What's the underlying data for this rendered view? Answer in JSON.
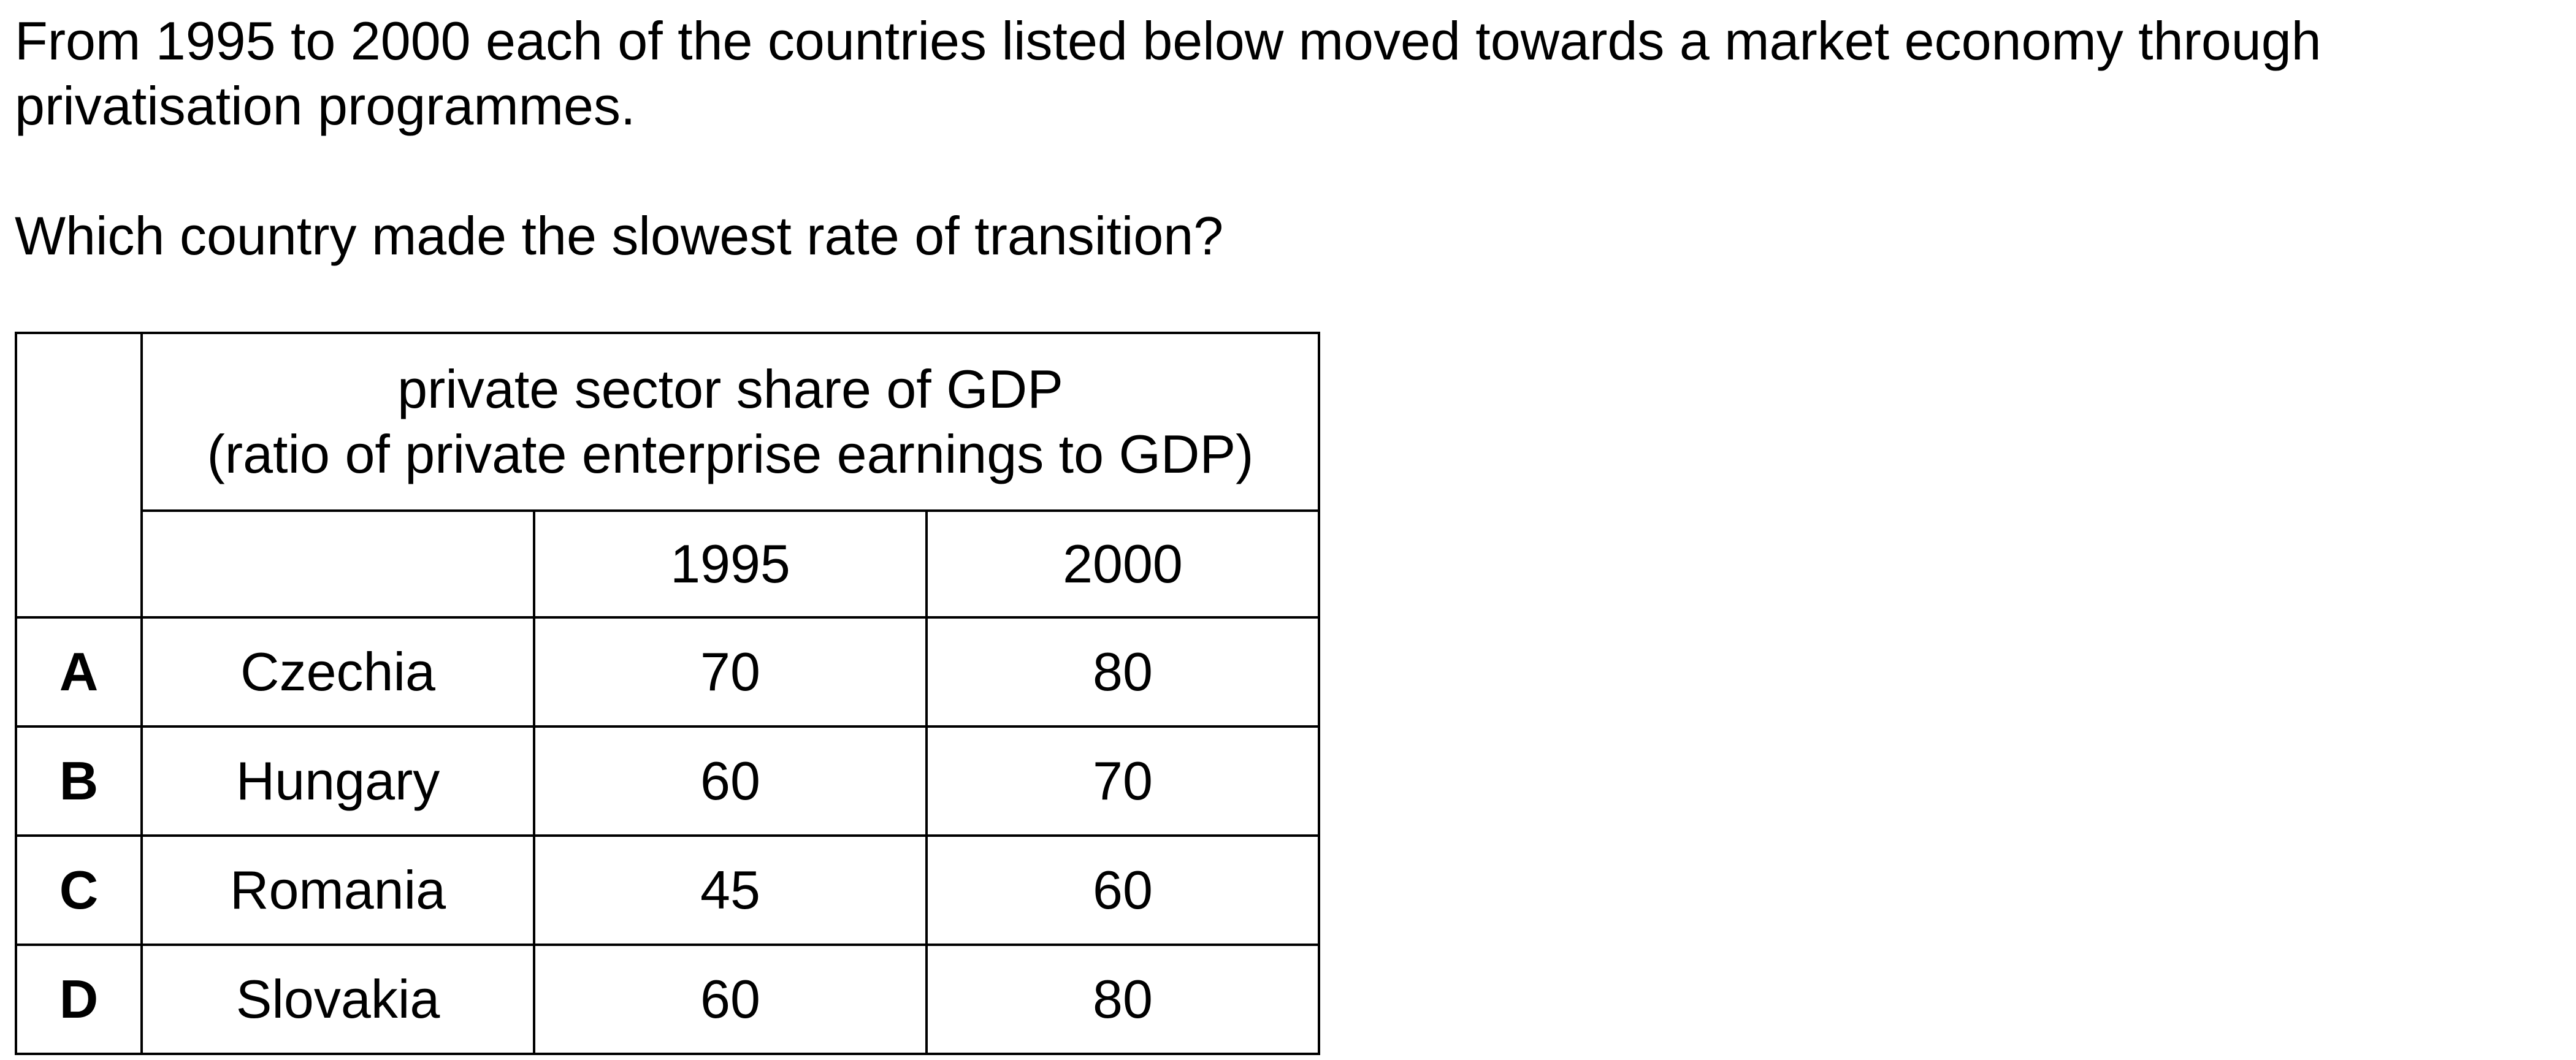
{
  "question": {
    "intro": "From 1995 to 2000 each of the countries listed below moved towards a market economy through\nprivatisation programmes.",
    "prompt": "Which country made the slowest rate of transition?"
  },
  "table": {
    "header_line1": "private sector share of GDP",
    "header_line2": "(ratio of private enterprise earnings to GDP)",
    "years": [
      "1995",
      "2000"
    ],
    "rows": [
      {
        "letter": "A",
        "country": "Czechia",
        "y1995": "70",
        "y2000": "80"
      },
      {
        "letter": "B",
        "country": "Hungary",
        "y1995": "60",
        "y2000": "70"
      },
      {
        "letter": "C",
        "country": "Romania",
        "y1995": "45",
        "y2000": "60"
      },
      {
        "letter": "D",
        "country": "Slovakia",
        "y1995": "60",
        "y2000": "80"
      }
    ]
  }
}
